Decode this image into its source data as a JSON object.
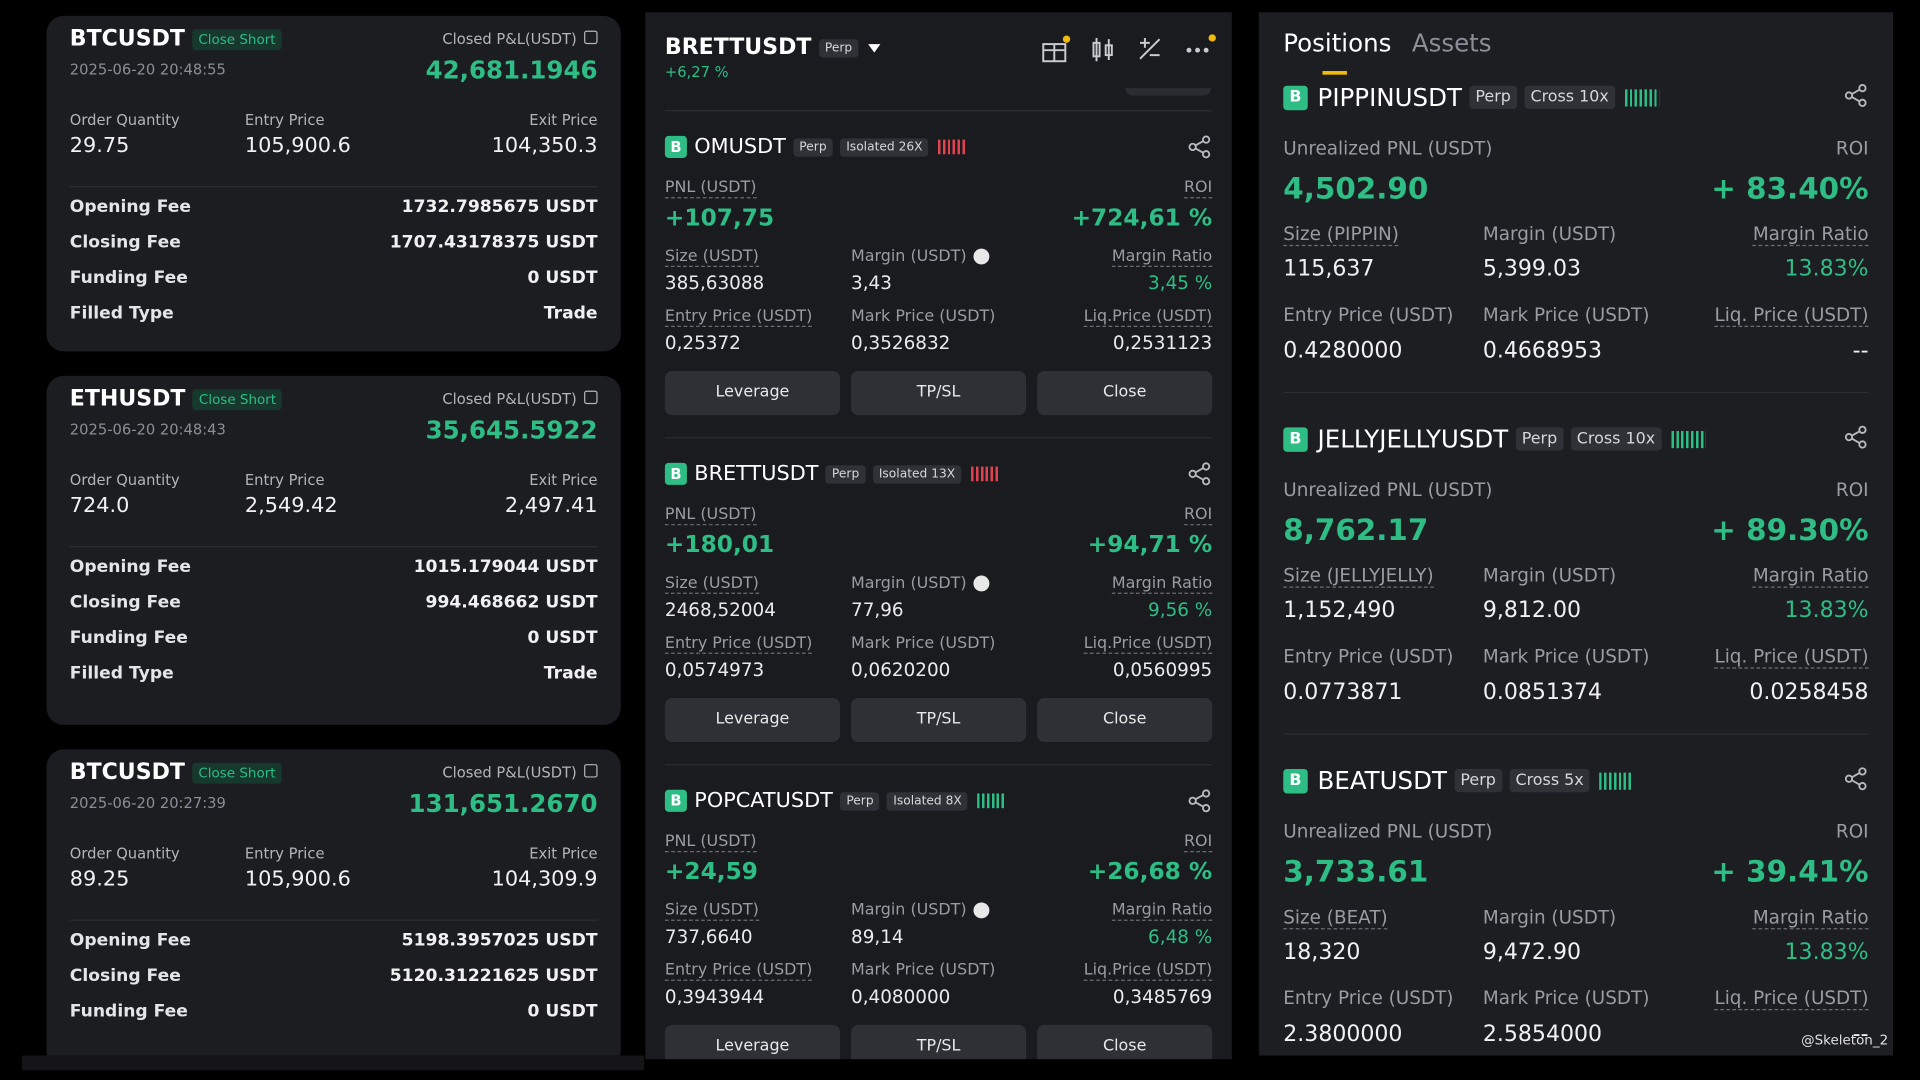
{
  "left_cards": [
    {
      "symbol": "BTCUSDT",
      "tag": "Close Short",
      "time": "2025-06-20 20:48:55",
      "pnl_label": "Closed P&L(USDT)",
      "pnl": "42,681.1946",
      "fields": [
        {
          "label": "Order Quantity",
          "value": "29.75"
        },
        {
          "label": "Entry Price",
          "value": "105,900.6"
        },
        {
          "label": "Exit Price",
          "value": "104,350.3"
        }
      ],
      "fees": [
        {
          "label": "Opening Fee",
          "value": "1732.7985675 USDT"
        },
        {
          "label": "Closing Fee",
          "value": "1707.43178375 USDT"
        },
        {
          "label": "Funding Fee",
          "value": "0 USDT"
        },
        {
          "label": "Filled Type",
          "value": "Trade"
        }
      ]
    },
    {
      "symbol": "ETHUSDT",
      "tag": "Close Short",
      "time": "2025-06-20 20:48:43",
      "pnl_label": "Closed P&L(USDT)",
      "pnl": "35,645.5922",
      "fields": [
        {
          "label": "Order Quantity",
          "value": "724.0"
        },
        {
          "label": "Entry Price",
          "value": "2,549.42"
        },
        {
          "label": "Exit Price",
          "value": "2,497.41"
        }
      ],
      "fees": [
        {
          "label": "Opening Fee",
          "value": "1015.179044 USDT"
        },
        {
          "label": "Closing Fee",
          "value": "994.468662 USDT"
        },
        {
          "label": "Funding Fee",
          "value": "0 USDT"
        },
        {
          "label": "Filled Type",
          "value": "Trade"
        }
      ]
    },
    {
      "symbol": "BTCUSDT",
      "tag": "Close Short",
      "time": "2025-06-20 20:27:39",
      "pnl_label": "Closed P&L(USDT)",
      "pnl": "131,651.2670",
      "fields": [
        {
          "label": "Order Quantity",
          "value": "89.25"
        },
        {
          "label": "Entry Price",
          "value": "105,900.6"
        },
        {
          "label": "Exit Price",
          "value": "104,309.9"
        }
      ],
      "fees": [
        {
          "label": "Opening Fee",
          "value": "5198.3957025 USDT"
        },
        {
          "label": "Closing Fee",
          "value": "5120.31221625 USDT"
        },
        {
          "label": "Funding Fee",
          "value": "0 USDT"
        }
      ]
    }
  ],
  "middle": {
    "header": {
      "symbol": "BRETTUSDT",
      "tag": "Perp",
      "change": "+6,27 %"
    },
    "buttons": [
      "Leverage",
      "TP/SL",
      "Close"
    ],
    "positions": [
      {
        "side": "B",
        "symbol": "OMUSDT",
        "tag": "Perp",
        "mode": "Isolated 26X",
        "bars_color": "#e0424f",
        "pnl_label": "PNL (USDT)",
        "pnl": "+107,75",
        "roi_label": "ROI",
        "roi": "+724,61 %",
        "rows": [
          [
            {
              "label": "Size (USDT)",
              "value": "385,63088"
            },
            {
              "label": "Margin (USDT)",
              "value": "3,43"
            },
            {
              "label": "Margin Ratio",
              "value": "3,45 %"
            }
          ],
          [
            {
              "label": "Entry Price (USDT)",
              "value": "0,25372"
            },
            {
              "label": "Mark Price (USDT)",
              "value": "0,3526832"
            },
            {
              "label": "Liq.Price (USDT)",
              "value": "0,2531123"
            }
          ]
        ]
      },
      {
        "side": "B",
        "symbol": "BRETTUSDT",
        "tag": "Perp",
        "mode": "Isolated 13X",
        "bars_color": "#e0424f",
        "pnl_label": "PNL (USDT)",
        "pnl": "+180,01",
        "roi_label": "ROI",
        "roi": "+94,71 %",
        "rows": [
          [
            {
              "label": "Size (USDT)",
              "value": "2468,52004"
            },
            {
              "label": "Margin (USDT)",
              "value": "77,96"
            },
            {
              "label": "Margin Ratio",
              "value": "9,56 %"
            }
          ],
          [
            {
              "label": "Entry Price (USDT)",
              "value": "0,0574973"
            },
            {
              "label": "Mark Price (USDT)",
              "value": "0,0620200"
            },
            {
              "label": "Liq.Price (USDT)",
              "value": "0,0560995"
            }
          ]
        ]
      },
      {
        "side": "B",
        "symbol": "POPCATUSDT",
        "tag": "Perp",
        "mode": "Isolated 8X",
        "bars_color": "#2ebd85",
        "pnl_label": "PNL (USDT)",
        "pnl": "+24,59",
        "roi_label": "ROI",
        "roi": "+26,68 %",
        "rows": [
          [
            {
              "label": "Size (USDT)",
              "value": "737,6640"
            },
            {
              "label": "Margin (USDT)",
              "value": "89,14"
            },
            {
              "label": "Margin Ratio",
              "value": "6,48 %"
            }
          ],
          [
            {
              "label": "Entry Price (USDT)",
              "value": "0,3943944"
            },
            {
              "label": "Mark Price (USDT)",
              "value": "0,4080000"
            },
            {
              "label": "Liq.Price (USDT)",
              "value": "0,3485769"
            }
          ]
        ]
      }
    ]
  },
  "right": {
    "tabs": [
      "Positions",
      "Assets"
    ],
    "positions": [
      {
        "side": "B",
        "symbol": "PIPPINUSDT",
        "tag": "Perp",
        "mode": "Cross 10x",
        "pnl_label": "Unrealized PNL (USDT)",
        "pnl": "4,502.90",
        "roi_label": "ROI",
        "roi": "+ 83.40%",
        "rows": [
          [
            {
              "label": "Size (PIPPIN)",
              "value": "115,637"
            },
            {
              "label": "Margin (USDT)",
              "value": "5,399.03"
            },
            {
              "label": "Margin Ratio",
              "value": "13.83%"
            }
          ],
          [
            {
              "label": "Entry Price (USDT)",
              "value": "0.4280000"
            },
            {
              "label": "Mark Price (USDT)",
              "value": "0.4668953"
            },
            {
              "label": "Liq. Price (USDT)",
              "value": "--"
            }
          ]
        ]
      },
      {
        "side": "B",
        "symbol": "JELLYJELLYUSDT",
        "tag": "Perp",
        "mode": "Cross 10x",
        "pnl_label": "Unrealized PNL (USDT)",
        "pnl": "8,762.17",
        "roi_label": "ROI",
        "roi": "+ 89.30%",
        "rows": [
          [
            {
              "label": "Size (JELLYJELLY)",
              "value": "1,152,490"
            },
            {
              "label": "Margin (USDT)",
              "value": "9,812.00"
            },
            {
              "label": "Margin Ratio",
              "value": "13.83%"
            }
          ],
          [
            {
              "label": "Entry Price (USDT)",
              "value": "0.0773871"
            },
            {
              "label": "Mark Price (USDT)",
              "value": "0.0851374"
            },
            {
              "label": "Liq. Price (USDT)",
              "value": "0.0258458"
            }
          ]
        ]
      },
      {
        "side": "B",
        "symbol": "BEATUSDT",
        "tag": "Perp",
        "mode": "Cross 5x",
        "pnl_label": "Unrealized PNL (USDT)",
        "pnl": "3,733.61",
        "roi_label": "ROI",
        "roi": "+ 39.41%",
        "rows": [
          [
            {
              "label": "Size (BEAT)",
              "value": "18,320"
            },
            {
              "label": "Margin (USDT)",
              "value": "9,472.90"
            },
            {
              "label": "Margin Ratio",
              "value": "13.83%"
            }
          ],
          [
            {
              "label": "Entry Price (USDT)",
              "value": "2.3800000"
            },
            {
              "label": "Mark Price (USDT)",
              "value": "2.5854000"
            },
            {
              "label": "Liq. Price (USDT)",
              "value": "--"
            }
          ]
        ]
      }
    ],
    "watermark": "@Skeleton_2"
  }
}
